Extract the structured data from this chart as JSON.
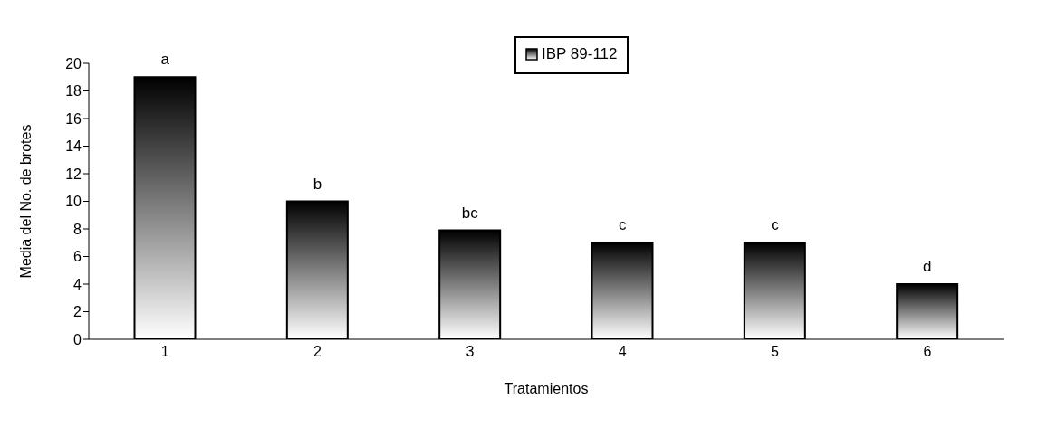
{
  "chart_data": {
    "type": "bar",
    "xlabel": "Tratamientos",
    "ylabel": "Media del No. de brotes",
    "categories": [
      "1",
      "2",
      "3",
      "4",
      "5",
      "6"
    ],
    "series": [
      {
        "name": "IBP 89-112",
        "color": "#000000",
        "values": [
          19,
          10,
          7.9,
          7,
          7,
          4
        ]
      }
    ],
    "ylim": [
      0,
      20
    ],
    "yticks": [
      0,
      2,
      4,
      6,
      8,
      10,
      12,
      14,
      16,
      18,
      20
    ],
    "grid": false,
    "legend": "top",
    "annotations": [
      {
        "text": "a",
        "x": "1",
        "y": 19
      },
      {
        "text": "b",
        "x": "2",
        "y": 10
      },
      {
        "text": "bc",
        "x": "3",
        "y": 7.9
      },
      {
        "text": "c",
        "x": "4",
        "y": 7
      },
      {
        "text": "c",
        "x": "5",
        "y": 7
      },
      {
        "text": "d",
        "x": "6",
        "y": 4
      }
    ]
  }
}
